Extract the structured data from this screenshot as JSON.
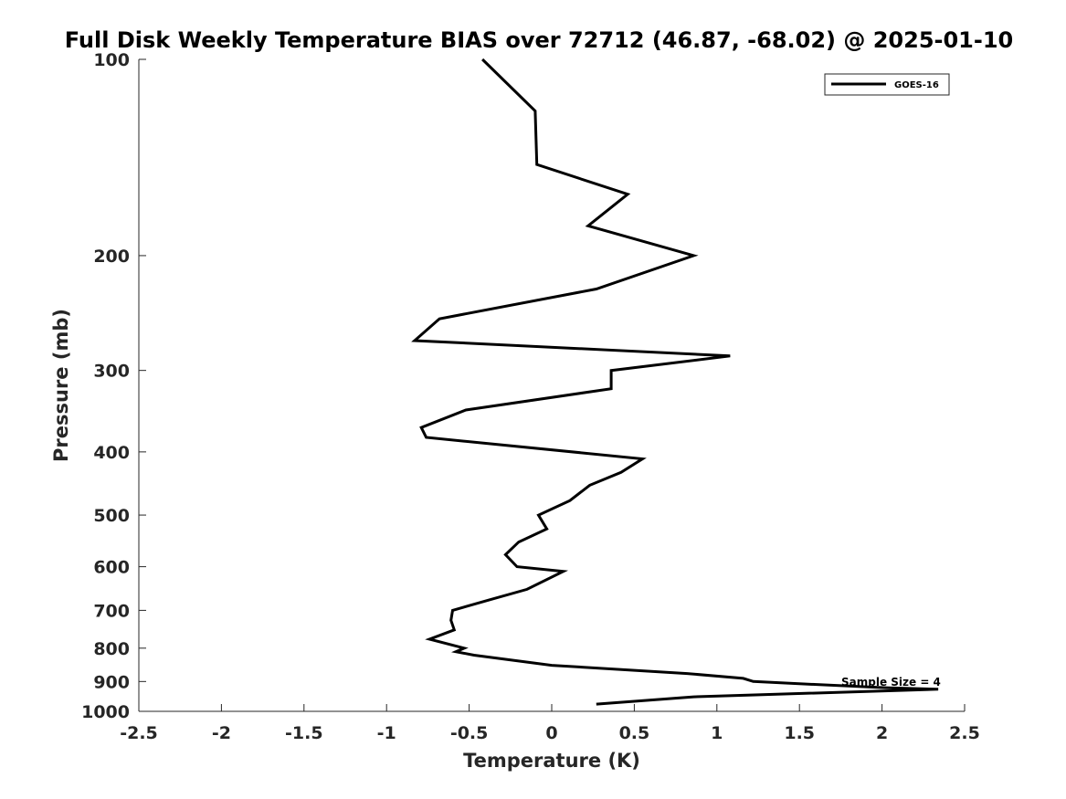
{
  "chart_data": {
    "type": "line",
    "title": "Full Disk Weekly Temperature BIAS over 72712 (46.87, -68.02) @ 2025-01-10",
    "xlabel": "Temperature (K)",
    "ylabel": "Pressure (mb)",
    "xlim": [
      -2.5,
      2.5
    ],
    "ylim": [
      100,
      1000
    ],
    "y_scale": "log",
    "y_reversed": true,
    "x_ticks": [
      "-2.5",
      "-2",
      "-1.5",
      "-1",
      "-0.5",
      "0",
      "0.5",
      "1",
      "1.5",
      "2",
      "2.5"
    ],
    "y_ticks": [
      "100",
      "200",
      "300",
      "400",
      "500",
      "600",
      "700",
      "800",
      "900",
      "1000"
    ],
    "grid": false,
    "legend_position": "top-right",
    "annotation": "Sample Size = 4",
    "series": [
      {
        "name": "GOES-16",
        "color": "#000000",
        "points": [
          [
            -0.42,
            100
          ],
          [
            -0.1,
            120
          ],
          [
            -0.09,
            145
          ],
          [
            0.46,
            161
          ],
          [
            0.22,
            180
          ],
          [
            0.86,
            200
          ],
          [
            0.27,
            225
          ],
          [
            -0.68,
            250
          ],
          [
            -0.83,
            270
          ],
          [
            1.08,
            285
          ],
          [
            0.36,
            300
          ],
          [
            0.36,
            320
          ],
          [
            -0.52,
            345
          ],
          [
            -0.79,
            367
          ],
          [
            -0.76,
            380
          ],
          [
            0.55,
            410
          ],
          [
            0.42,
            430
          ],
          [
            0.23,
            450
          ],
          [
            0.11,
            475
          ],
          [
            -0.08,
            500
          ],
          [
            -0.03,
            525
          ],
          [
            -0.2,
            550
          ],
          [
            -0.28,
            575
          ],
          [
            -0.21,
            600
          ],
          [
            0.07,
            610
          ],
          [
            -0.15,
            650
          ],
          [
            -0.38,
            675
          ],
          [
            -0.6,
            700
          ],
          [
            -0.61,
            725
          ],
          [
            -0.59,
            750
          ],
          [
            -0.74,
            775
          ],
          [
            -0.53,
            800
          ],
          [
            -0.58,
            810
          ],
          [
            -0.47,
            820
          ],
          [
            0.0,
            850
          ],
          [
            0.82,
            875
          ],
          [
            1.16,
            890
          ],
          [
            1.22,
            900
          ],
          [
            1.62,
            910
          ],
          [
            2.02,
            920
          ],
          [
            2.34,
            925
          ],
          [
            0.86,
            950
          ],
          [
            0.27,
            975
          ]
        ]
      }
    ]
  }
}
